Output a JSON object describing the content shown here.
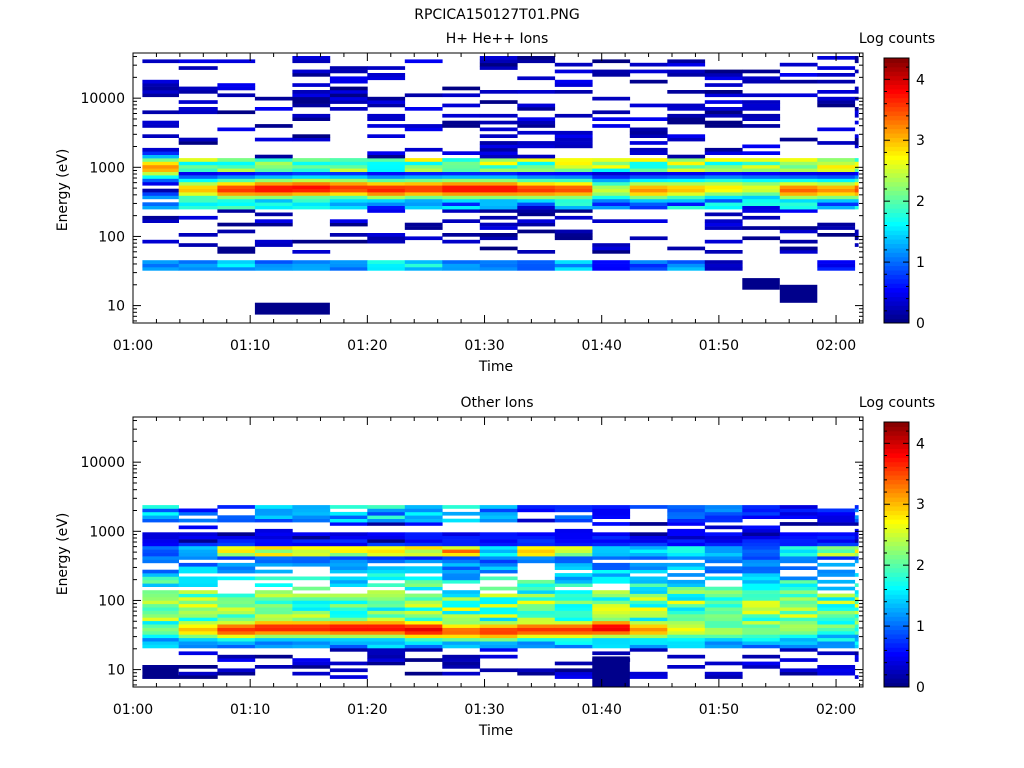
{
  "figure": {
    "title": "RPCICA150127T01.PNG"
  },
  "chart_data": [
    {
      "type": "heatmap",
      "title": "H+ He++ Ions",
      "xlabel": "Time",
      "ylabel": "Energy (eV)",
      "ylog": true,
      "ylim": [
        5.6,
        45000
      ],
      "xlim_minutes": [
        60,
        122.3
      ],
      "xticks": [
        {
          "v": 60,
          "label": "01:00"
        },
        {
          "v": 70,
          "label": "01:10"
        },
        {
          "v": 80,
          "label": "01:20"
        },
        {
          "v": 90,
          "label": "01:30"
        },
        {
          "v": 100,
          "label": "01:40"
        },
        {
          "v": 110,
          "label": "01:50"
        },
        {
          "v": 120,
          "label": "02:00"
        }
      ],
      "yticks": [
        {
          "v": 10,
          "label": "10"
        },
        {
          "v": 100,
          "label": "100"
        },
        {
          "v": 1000,
          "label": "1000"
        },
        {
          "v": 10000,
          "label": "10000"
        }
      ],
      "colorbar": {
        "label": "Log counts",
        "range": [
          0,
          4.35
        ],
        "ticks": [
          {
            "v": 0,
            "label": "0"
          },
          {
            "v": 1,
            "label": "1"
          },
          {
            "v": 2,
            "label": "2"
          },
          {
            "v": 3,
            "label": "3"
          },
          {
            "v": 4,
            "label": "4"
          }
        ]
      },
      "time_bins_minutes": [
        60.8,
        63.9,
        67.2,
        70.4,
        73.6,
        76.8,
        80.0,
        83.2,
        86.4,
        89.6,
        92.8,
        96.0,
        99.2,
        102.4,
        105.6,
        108.8,
        112.0,
        115.2,
        118.4,
        121.6
      ],
      "profile": {
        "peak_energy": [
          1000,
          480,
          480,
          490,
          500,
          500,
          480,
          490,
          490,
          490,
          480,
          480,
          470,
          470,
          480,
          500,
          500,
          470,
          470,
          480
        ],
        "peak_level": [
          3.2,
          3.0,
          3.6,
          3.8,
          3.8,
          3.6,
          3.7,
          3.6,
          3.8,
          3.8,
          3.6,
          3.5,
          2.5,
          3.2,
          3.0,
          2.8,
          2.6,
          3.4,
          3.2,
          3.5
        ],
        "low_band": [
          {
            "emin": 34,
            "emax": 46,
            "levels": [
              1.2,
              1.2,
              1.6,
              1.2,
              1.5,
              1.4,
              1.5,
              1.6,
              1.3,
              1.0,
              1.3,
              1.4,
              0.6,
              1.0,
              1.2,
              0.3,
              0.0,
              0.0,
              0.6,
              0.0
            ]
          }
        ],
        "special": [
          {
            "tmin": 70.4,
            "tmax": 76.8,
            "emin": 7.4,
            "emax": 11,
            "level": 0.05
          },
          {
            "tmin": 112.0,
            "tmax": 115.2,
            "emin": 17,
            "emax": 25,
            "level": 0.05
          },
          {
            "tmin": 115.2,
            "tmax": 118.4,
            "emin": 11,
            "emax": 20,
            "level": 0.05
          }
        ]
      }
    },
    {
      "type": "heatmap",
      "title": "Other Ions",
      "xlabel": "Time",
      "ylabel": "Energy (eV)",
      "ylog": true,
      "ylim": [
        5.6,
        45000
      ],
      "xlim_minutes": [
        60,
        122.3
      ],
      "xticks": [
        {
          "v": 60,
          "label": "01:00"
        },
        {
          "v": 70,
          "label": "01:10"
        },
        {
          "v": 80,
          "label": "01:20"
        },
        {
          "v": 90,
          "label": "01:30"
        },
        {
          "v": 100,
          "label": "01:40"
        },
        {
          "v": 110,
          "label": "01:50"
        },
        {
          "v": 120,
          "label": "02:00"
        }
      ],
      "yticks": [
        {
          "v": 10,
          "label": "10"
        },
        {
          "v": 100,
          "label": "100"
        },
        {
          "v": 1000,
          "label": "1000"
        },
        {
          "v": 10000,
          "label": "10000"
        }
      ],
      "colorbar": {
        "label": "Log counts",
        "range": [
          0,
          4.35
        ],
        "ticks": [
          {
            "v": 0,
            "label": "0"
          },
          {
            "v": 1,
            "label": "1"
          },
          {
            "v": 2,
            "label": "2"
          },
          {
            "v": 3,
            "label": "3"
          },
          {
            "v": 4,
            "label": "4"
          }
        ]
      },
      "time_bins_minutes": [
        60.8,
        63.9,
        67.2,
        70.4,
        73.6,
        76.8,
        80.0,
        83.2,
        86.4,
        89.6,
        92.8,
        96.0,
        99.2,
        102.4,
        105.6,
        108.8,
        112.0,
        115.2,
        118.4,
        121.6
      ],
      "profile": {
        "peak_energy": [
          38,
          38,
          38,
          40,
          40,
          40,
          40,
          38,
          36,
          36,
          38,
          38,
          40,
          38,
          38,
          36,
          36,
          38,
          40,
          40
        ],
        "peak_level": [
          2.2,
          3.0,
          3.6,
          3.7,
          3.7,
          3.8,
          3.8,
          3.9,
          3.4,
          3.6,
          3.6,
          3.6,
          3.9,
          3.2,
          2.7,
          2.4,
          2.2,
          2.3,
          2.0,
          1.7
        ],
        "mid_band": [
          {
            "emin": 420,
            "emax": 600,
            "levels": [
              1.0,
              1.4,
              2.6,
              2.7,
              2.7,
              2.6,
              2.6,
              2.8,
              3.1,
              1.6,
              2.7,
              2.5,
              1.5,
              1.5,
              1.6,
              1.3,
              1.0,
              1.8,
              2.3,
              2.7
            ]
          }
        ],
        "high_band": [
          {
            "emin": 1300,
            "emax": 2400,
            "levels": [
              1.3,
              0.9,
              0.9,
              1.2,
              1.1,
              1.3,
              1.4,
              1.2,
              1.4,
              1.0,
              0.5,
              0.8,
              0.5,
              1.1,
              0.8,
              1.1,
              0.7,
              0.5,
              0.6,
              1.1
            ]
          }
        ],
        "special": [
          {
            "tmin": 60.8,
            "tmax": 63.9,
            "emin": 7.4,
            "emax": 10.8,
            "level": 0.05
          },
          {
            "tmin": 99.2,
            "tmax": 102.4,
            "emin": 5.6,
            "emax": 15.5,
            "level": 0.05
          }
        ]
      }
    }
  ]
}
